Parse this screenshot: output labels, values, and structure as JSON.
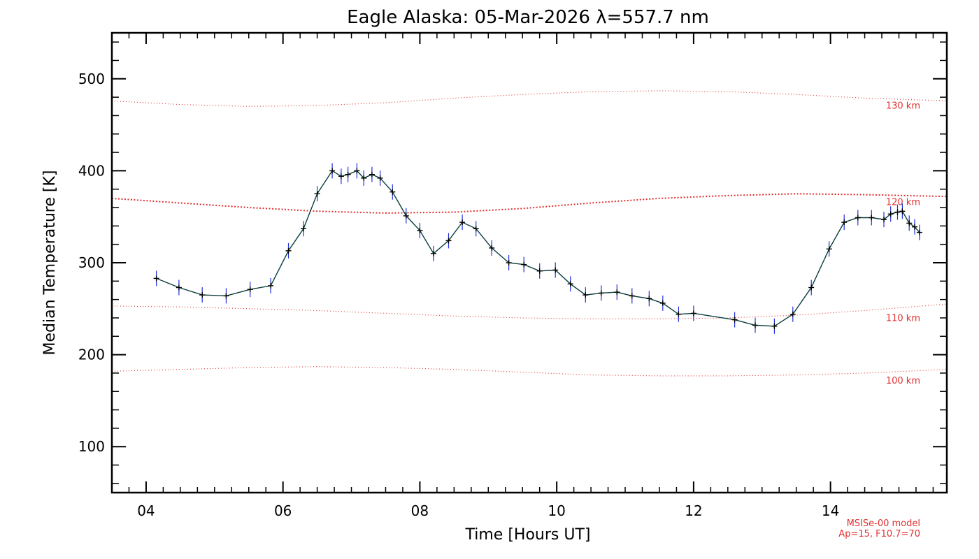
{
  "chart_data": {
    "type": "line",
    "title": "Eagle Alaska: 05-Mar-2026 λ=557.7 nm",
    "xlabel": "Time [Hours UT]",
    "ylabel": "Median Temperature [K]",
    "xlim": [
      3.5,
      15.7
    ],
    "ylim": [
      50,
      550
    ],
    "x_ticks": [
      4,
      6,
      8,
      10,
      12,
      14
    ],
    "x_tick_labels": [
      "04",
      "06",
      "08",
      "10",
      "12",
      "14"
    ],
    "y_ticks": [
      100,
      200,
      300,
      400,
      500
    ],
    "y_tick_labels": [
      "100",
      "200",
      "300",
      "400",
      "500"
    ],
    "series": [
      {
        "name": "Median Temperature",
        "color": "#0b3d3d",
        "errorbar_color": "#2233dd",
        "x": [
          4.15,
          4.48,
          4.82,
          5.17,
          5.52,
          5.82,
          6.08,
          6.3,
          6.5,
          6.72,
          6.85,
          6.95,
          7.08,
          7.18,
          7.3,
          7.42,
          7.6,
          7.8,
          8.0,
          8.2,
          8.42,
          8.62,
          8.82,
          9.05,
          9.3,
          9.52,
          9.75,
          9.98,
          10.2,
          10.42,
          10.65,
          10.88,
          11.1,
          11.35,
          11.55,
          11.78,
          12.0,
          12.6,
          12.9,
          13.18,
          13.45,
          13.72,
          13.98,
          14.2,
          14.4,
          14.6,
          14.78,
          14.88,
          14.98,
          15.05,
          15.15,
          15.23,
          15.3
        ],
        "y": [
          283,
          273,
          265,
          264,
          271,
          275,
          313,
          337,
          375,
          400,
          394,
          396,
          400,
          392,
          396,
          392,
          377,
          351,
          335,
          310,
          324,
          344,
          337,
          316,
          300,
          298,
          291,
          292,
          277,
          265,
          267,
          268,
          264,
          261,
          256,
          244,
          245,
          238,
          232,
          231,
          244,
          273,
          315,
          344,
          349,
          349,
          347,
          353,
          355,
          356,
          343,
          339,
          333
        ]
      }
    ],
    "model_curves": [
      {
        "label": "130 km",
        "x": [
          3.5,
          4.5,
          5.5,
          6.5,
          7.5,
          8.5,
          9.5,
          10.5,
          11.5,
          12.5,
          13.5,
          14.5,
          15.7
        ],
        "y": [
          476,
          472,
          470,
          471,
          474,
          479,
          483,
          486,
          487,
          486,
          483,
          479,
          476
        ],
        "thick": false
      },
      {
        "label": "120 km",
        "x": [
          3.5,
          4.5,
          5.5,
          6.5,
          7.5,
          8.5,
          9.5,
          10.5,
          11.5,
          12.5,
          13.5,
          14.5,
          15.7
        ],
        "y": [
          370,
          365,
          360,
          356,
          354,
          355,
          359,
          365,
          370,
          373,
          375,
          374,
          372
        ],
        "thick": true
      },
      {
        "label": "110 km",
        "x": [
          3.5,
          4.5,
          5.5,
          6.5,
          7.5,
          8.5,
          9.5,
          10.5,
          11.5,
          12.5,
          13.5,
          14.5,
          15.7
        ],
        "y": [
          253,
          252,
          250,
          248,
          245,
          242,
          240,
          239,
          239,
          240,
          243,
          248,
          255
        ],
        "thick": false
      },
      {
        "label": "100 km",
        "x": [
          3.5,
          4.5,
          5.5,
          6.5,
          7.5,
          8.5,
          9.5,
          10.5,
          11.5,
          12.5,
          13.5,
          14.5,
          15.7
        ],
        "y": [
          182,
          184,
          186,
          187,
          186,
          184,
          181,
          178,
          177,
          177,
          178,
          180,
          184
        ],
        "thick": false
      }
    ],
    "model_note": [
      "MSISe-00 model",
      "Ap=15, F10.7=70"
    ],
    "model_color": "#e03030"
  }
}
